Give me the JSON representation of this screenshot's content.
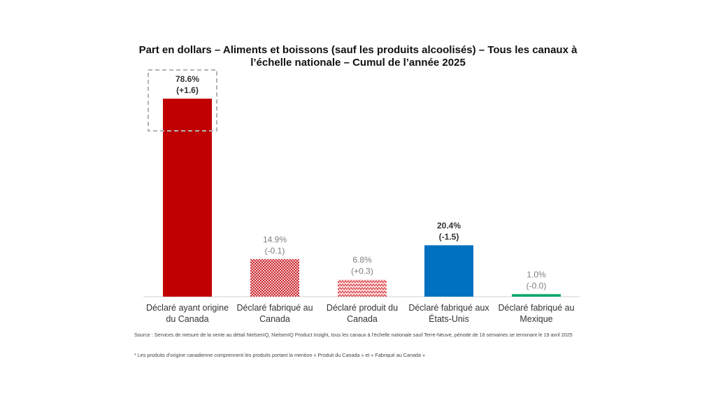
{
  "title_line1": "Part en dollars – Aliments et boissons (sauf les produits alcoolisés) – Tous les canaux à",
  "title_line2": "l’échelle nationale – Cumul de l’année 2025",
  "chart_data": {
    "type": "bar",
    "title": "Part en dollars – Aliments et boissons (sauf les produits alcoolisés) – Tous les canaux à l’échelle nationale – Cumul de l’année 2025",
    "categories": [
      [
        "Déclaré ayant origine",
        "du Canada"
      ],
      [
        "Déclaré fabriqué au",
        "Canada"
      ],
      [
        "Déclaré produit du",
        "Canada"
      ],
      [
        "Déclaré fabriqué aux",
        "États-Unis"
      ],
      [
        "Déclaré fabriqué au",
        "Mexique"
      ]
    ],
    "values": [
      78.6,
      14.9,
      6.8,
      20.4,
      1.0
    ],
    "value_labels": [
      "78.6%",
      "14.9%",
      "6.8%",
      "20.4%",
      "1.0%"
    ],
    "change_labels": [
      "(+1.6)",
      "(-0.1)",
      "(+0.3)",
      "(-1.5)",
      "(-0.0)"
    ],
    "label_bold": [
      true,
      false,
      false,
      true,
      false
    ],
    "colors": [
      "#c00000",
      "#d9383f",
      "#e8898c",
      "#0070c0",
      "#00a86b"
    ],
    "patterns": [
      "solid",
      "checker",
      "zigzag",
      "solid",
      "solid"
    ],
    "highlighted_category_index": 0,
    "grid": false,
    "legend": "none"
  },
  "source_note": "Source : Services de mesure de la vente au détail NielsenIQ, NielsenIQ Product Insight, tous les canaux à l’échelle nationale sauf Terre-Neuve, période de 16 semaines se terminant le 19 avril 2025",
  "origin_note": "* Les produits d’origine canadienne comprennent les produits portant la mention « Produit du Canada » et « Fabriqué au Canada »"
}
